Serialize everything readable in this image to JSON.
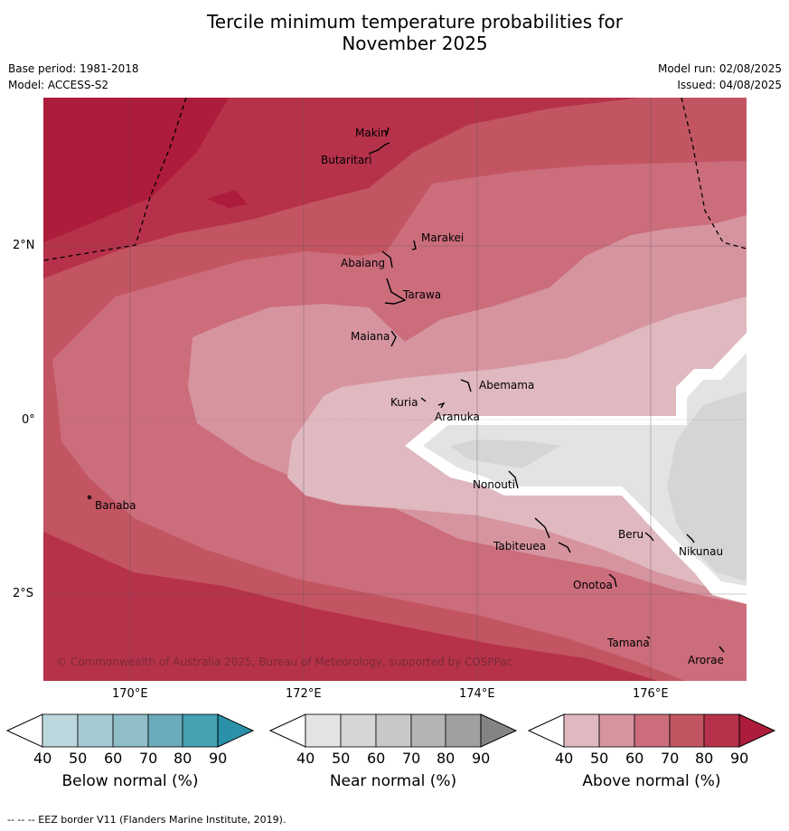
{
  "title_line1": "Tercile minimum temperature probabilities for",
  "title_line2": "November 2025",
  "base_period": "Base period: 1981-2018",
  "model": "Model: ACCESS-S2",
  "model_run": "Model run: 02/08/2025",
  "issued": "Issued: 04/08/2025",
  "copyright": "© Commonwealth of Australia 2025, Bureau of Meteorology, supported by COSPPac",
  "lon_labels": [
    "170°E",
    "172°E",
    "174°E",
    "176°E"
  ],
  "lat_labels": [
    "2°N",
    "0°",
    "2°S"
  ],
  "islands": [
    {
      "name": "Makin"
    },
    {
      "name": "Butaritari"
    },
    {
      "name": "Marakei"
    },
    {
      "name": "Abaiang"
    },
    {
      "name": "Tarawa"
    },
    {
      "name": "Maiana"
    },
    {
      "name": "Abemama"
    },
    {
      "name": "Kuria"
    },
    {
      "name": "Aranuka"
    },
    {
      "name": "Banaba"
    },
    {
      "name": "Nonouti"
    },
    {
      "name": "Beru"
    },
    {
      "name": "Tabiteuea"
    },
    {
      "name": "Nikunau"
    },
    {
      "name": "Onotoa"
    },
    {
      "name": "Tamana"
    },
    {
      "name": "Arorae"
    }
  ],
  "colorbars": [
    {
      "label": "Below normal (%)",
      "ticks": [
        "40",
        "50",
        "60",
        "70",
        "80",
        "90"
      ],
      "colors": [
        "#ffffff",
        "#bdd7de",
        "#a6cad3",
        "#8fbdc8",
        "#6aaabb",
        "#45a0b2",
        "#2b91a8"
      ]
    },
    {
      "label": "Near normal (%)",
      "ticks": [
        "40",
        "50",
        "60",
        "70",
        "80",
        "90"
      ],
      "colors": [
        "#ffffff",
        "#e3e3e3",
        "#d5d5d5",
        "#c8c8c8",
        "#b4b4b4",
        "#a0a0a0",
        "#848484"
      ]
    },
    {
      "label": "Above normal (%)",
      "ticks": [
        "40",
        "50",
        "60",
        "70",
        "80",
        "90"
      ],
      "colors": [
        "#ffffff",
        "#e0b8bf",
        "#d6949f",
        "#cc6d7c",
        "#c35562",
        "#b6324a",
        "#ad1c3a"
      ]
    }
  ],
  "footer": "--  --  -- EEZ border V11 (Flanders Marine Institute, 2019)."
}
